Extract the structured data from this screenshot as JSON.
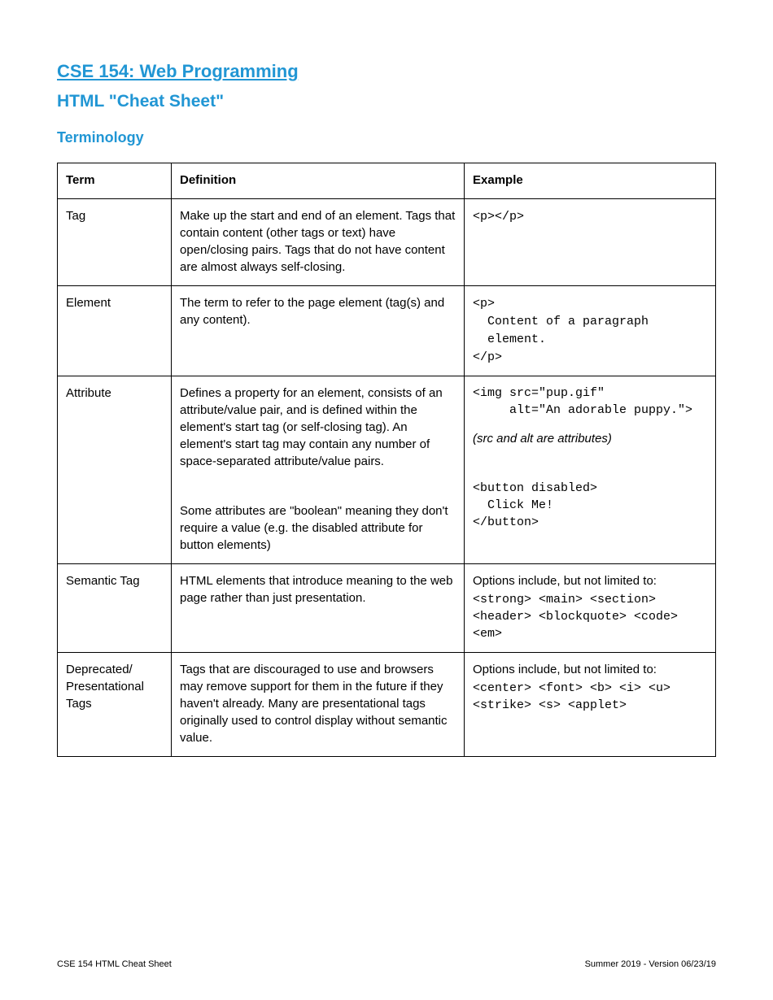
{
  "header": {
    "title_link": "CSE 154: Web Programming",
    "subtitle": "HTML \"Cheat Sheet\"",
    "section": "Terminology"
  },
  "table": {
    "columns": [
      "Term",
      "Definition",
      "Example"
    ],
    "rows": [
      {
        "term": "Tag",
        "definition": "Make up the start and end of an element. Tags that contain content (other tags or text) have open/closing pairs. Tags that do not have content are almost always self-closing.",
        "example_code": "<p></p>"
      },
      {
        "term": "Element",
        "definition": "The term to refer to the page element (tag(s) and any content).",
        "example_code": "<p>\n  Content of a paragraph\n  element.\n</p>"
      },
      {
        "term": "Attribute",
        "definition_blocks": [
          "Defines a property for an element, consists of an attribute/value pair, and is defined within the element's start tag (or self-closing tag). An element's start tag may contain any number of space-separated attribute/value pairs.",
          "Some attributes are \"boolean\" meaning they don't require a value (e.g. the disabled attribute for button elements)"
        ],
        "example_blocks": [
          {
            "code": "<img src=\"pup.gif\"\n     alt=\"An adorable puppy.\">",
            "note": "(src and alt are attributes)"
          },
          {
            "code": "<button disabled>\n  Click Me!\n</button>"
          }
        ]
      },
      {
        "term": "Semantic Tag",
        "definition": "HTML elements that introduce meaning to the web page rather than just presentation.",
        "example_intro": "Options include, but not limited to:",
        "example_code": "<strong> <main> <section>\n<header> <blockquote> <code>\n<em>"
      },
      {
        "term": "Deprecated/ Presentational Tags",
        "definition": "Tags that are discouraged to use and browsers may remove support for them in the future if they haven't already. Many are presentational tags originally used to control display without semantic value.",
        "example_intro": "Options include, but not limited to:",
        "example_code": "<center> <font> <b> <i> <u>\n<strike> <s> <applet>"
      }
    ]
  },
  "footer": {
    "left": "CSE 154 HTML Cheat Sheet",
    "right": "Summer 2019 - Version 06/23/19"
  },
  "colors": {
    "accent": "#2196d4",
    "text": "#000000",
    "border": "#000000",
    "background": "#ffffff"
  },
  "typography": {
    "body_family": "Arial, Helvetica, sans-serif",
    "mono_family": "Courier New, monospace",
    "title_size_pt": 17,
    "subtitle_size_pt": 16,
    "section_size_pt": 14,
    "body_size_pt": 11,
    "footer_size_pt": 8
  }
}
